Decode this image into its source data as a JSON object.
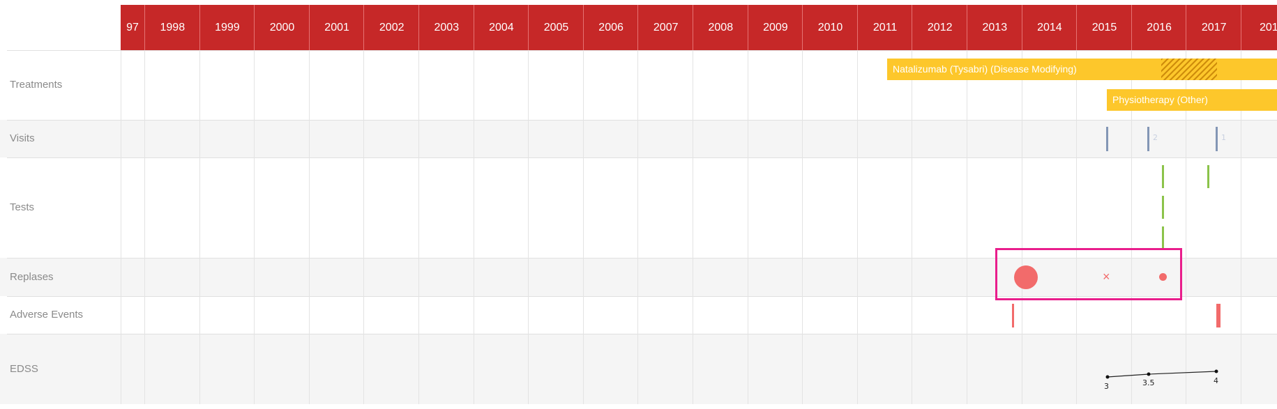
{
  "rows": {
    "treatments": "Treatments",
    "visits": "Visits",
    "tests": "Tests",
    "relapses": "Replases",
    "adverse_events": "Adverse Events",
    "edss": "EDSS"
  },
  "years": [
    "97",
    "1998",
    "1999",
    "2000",
    "2001",
    "2002",
    "2003",
    "2004",
    "2005",
    "2006",
    "2007",
    "2008",
    "2009",
    "2010",
    "2011",
    "2012",
    "2013",
    "2014",
    "2015",
    "2016",
    "2017",
    "201"
  ],
  "treatments": [
    {
      "label": "Natalizumab (Tysabri) (Disease Modifying)"
    },
    {
      "label": "Physiotherapy (Other)"
    }
  ],
  "visit_marks": [
    "",
    "2",
    "1"
  ],
  "edss_values": [
    "3",
    "3.5",
    "4"
  ],
  "colors": {
    "header": "#c62828",
    "treatment": "#fdc72b",
    "visit": "#8396b5",
    "test": "#8bc34a",
    "event": "#f26b6b",
    "highlight": "#e91e8c"
  }
}
